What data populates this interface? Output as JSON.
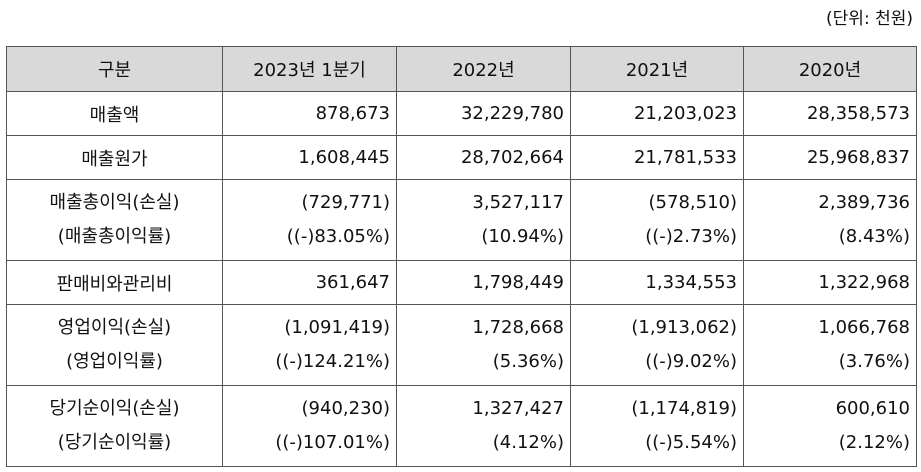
{
  "unit_note": "(단위: 천원)",
  "headers": [
    "구분",
    "2023년 1분기",
    "2022년",
    "2021년",
    "2020년"
  ],
  "rows": [
    {
      "label": "매출액",
      "values": [
        "878,673",
        "32,229,780",
        "21,203,023",
        "28,358,573"
      ]
    },
    {
      "label": "매출원가",
      "values": [
        "1,608,445",
        "28,702,664",
        "21,781,533",
        "25,968,837"
      ]
    },
    {
      "label": "매출총이익(손실)",
      "sublabel": "(매출총이익률)",
      "values": [
        "(729,771)",
        "3,527,117",
        "(578,510)",
        "2,389,736"
      ],
      "subvalues": [
        "((-)83.05%)",
        "(10.94%)",
        "((-)2.73%)",
        "(8.43%)"
      ]
    },
    {
      "label": "판매비와관리비",
      "values": [
        "361,647",
        "1,798,449",
        "1,334,553",
        "1,322,968"
      ]
    },
    {
      "label": "영업이익(손실)",
      "sublabel": "(영업이익률)",
      "values": [
        "(1,091,419)",
        "1,728,668",
        "(1,913,062)",
        "1,066,768"
      ],
      "subvalues": [
        "((-)124.21%)",
        "(5.36%)",
        "((-)9.02%)",
        "(3.76%)"
      ]
    },
    {
      "label": "당기순이익(손실)",
      "sublabel": "(당기순이익률)",
      "values": [
        "(940,230)",
        "1,327,427",
        "(1,174,819)",
        "600,610"
      ],
      "subvalues": [
        "((-)107.01%)",
        "(4.12%)",
        "((-)5.54%)",
        "(2.12%)"
      ]
    }
  ]
}
